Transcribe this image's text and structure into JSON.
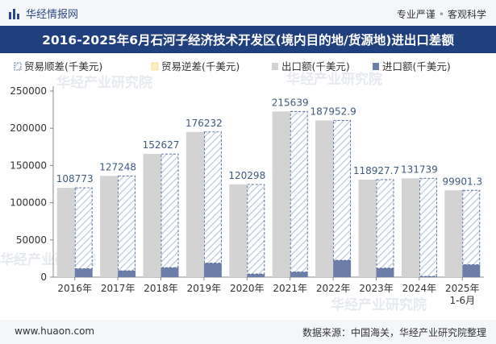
{
  "header": {
    "brand_name": "华经情报网",
    "tags": [
      "专业严谨",
      "客观科学"
    ],
    "logo_icon": "bar-logo-icon"
  },
  "title": "2016-2025年6月石河子经济技术开发区(境内目的地/货源地)进出口差额",
  "footer": {
    "url": "www.huaon.com",
    "source": "数据来源：中国海关，华经产业研究院整理"
  },
  "watermark": "华经产业研究院",
  "colors": {
    "title_bg": "#1f3f7d",
    "export": "#d3d3d3",
    "import": "#6a7ea8",
    "surplus_hatch": "#b9c6d9",
    "surplus_border": "#4f6795",
    "deficit": "#f4d06a",
    "value_label": "#3f5a7f"
  },
  "chart_data": {
    "type": "bar",
    "categories": [
      "2016年",
      "2017年",
      "2018年",
      "2019年",
      "2020年",
      "2021年",
      "2022年",
      "2023年",
      "2024年",
      "2025年\n1-6月"
    ],
    "series": [
      {
        "name": "贸易顺差(千美元)",
        "values": [
          108773,
          127248,
          152627,
          176232,
          120298,
          215639,
          187952.9,
          118927.7,
          131739,
          99901.3
        ]
      },
      {
        "name": "贸易逆差(千美元)",
        "values": [
          0,
          0,
          0,
          0,
          0,
          0,
          0,
          0,
          0,
          0
        ]
      },
      {
        "name": "出口额(千美元)",
        "values": [
          120000,
          136000,
          165500,
          195000,
          124500,
          222600,
          210500,
          131000,
          132700,
          116600
        ]
      },
      {
        "name": "进口额(千美元)",
        "values": [
          11300,
          8600,
          12800,
          18800,
          4200,
          6900,
          22600,
          12100,
          1000,
          16700
        ]
      }
    ],
    "value_labels": [
      "108773",
      "127248",
      "152627",
      "176232",
      "120298",
      "215639",
      "187952.9",
      "118927.7",
      "131739",
      "99901.3"
    ],
    "y_ticks": [
      "0",
      "50000",
      "100000",
      "150000",
      "200000",
      "250000"
    ],
    "ylim": [
      0,
      250000
    ],
    "legend_position": "top-left",
    "grid": false
  }
}
